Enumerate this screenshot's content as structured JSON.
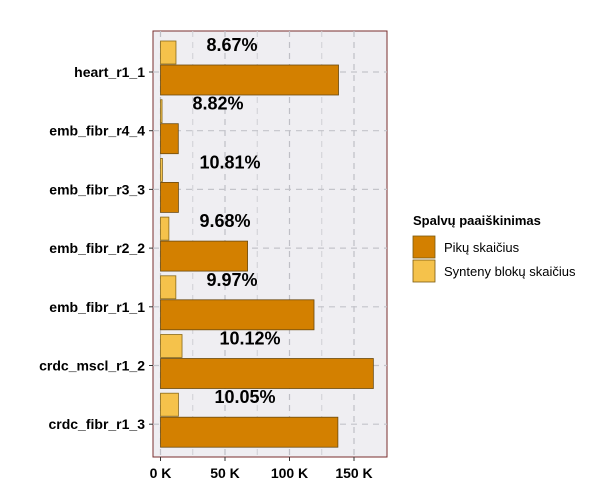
{
  "chart_data": {
    "type": "bar",
    "orientation": "horizontal",
    "categories": [
      "heart_r1_1",
      "emb_fibr_r4_4",
      "emb_fibr_r3_3",
      "emb_fibr_r2_2",
      "emb_fibr_r1_1",
      "crdc_mscl_r1_2",
      "crdc_fibr_r1_3"
    ],
    "series": [
      {
        "name": "Pikų skaičius",
        "color": "#d38000",
        "values": [
          138000,
          13800,
          13900,
          67500,
          119000,
          165000,
          137500
        ]
      },
      {
        "name": "Synteny blokų skaičius",
        "color": "#f5c24b",
        "values": [
          12000,
          1200,
          1500,
          6500,
          11900,
          16700,
          13900
        ]
      }
    ],
    "annotations": [
      "8.67%",
      "8.82%",
      "10.81%",
      "9.68%",
      "9.97%",
      "10.12%",
      "10.05%"
    ],
    "xticks": [
      0,
      50000,
      100000,
      150000
    ],
    "xtick_labels": [
      "0 K",
      "50 K",
      "100 K",
      "150 K"
    ],
    "xlim": [
      0,
      172000
    ],
    "grid": true,
    "legend": {
      "title": "Spalvų paaiškinimas",
      "placement": "right"
    },
    "title": "",
    "xlabel": "",
    "ylabel": ""
  }
}
